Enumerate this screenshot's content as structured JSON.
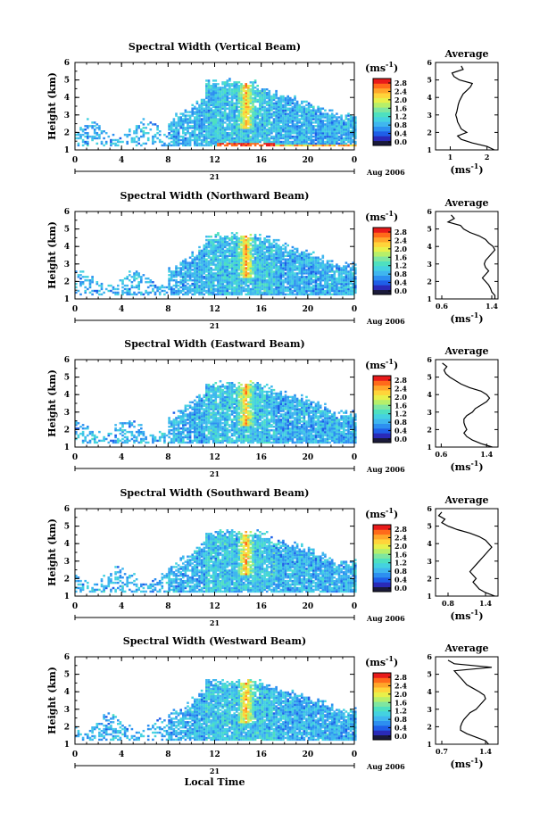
{
  "figure": {
    "xlabel": "Local Time",
    "date_label": "21",
    "month_label": "Aug 2006",
    "ylabel": "Height (km)",
    "unit_label": "(ms",
    "unit_sup": "-1",
    "unit_close": ")",
    "avg_title": "Average"
  },
  "colorbar": {
    "ticks": [
      "2.8",
      "2.4",
      "2.0",
      "1.6",
      "1.2",
      "0.8",
      "0.4",
      "0.0"
    ],
    "colors": [
      "#1a1a3a",
      "#2a2ab8",
      "#1f5fe8",
      "#2d8ff0",
      "#3fb6ef",
      "#44d2e0",
      "#4ee0c0",
      "#7fe6a0",
      "#b6ef6a",
      "#e8f04a",
      "#ffd43a",
      "#ffa62a",
      "#ff6a1a",
      "#e81a1a"
    ]
  },
  "chart_data": [
    {
      "type": "heatmap",
      "title": "Spectral Width (Vertical Beam)",
      "x_ticks": [
        "0",
        "4",
        "8",
        "12",
        "16",
        "20",
        "0"
      ],
      "y_ticks": [
        "1",
        "2",
        "3",
        "4",
        "5",
        "6"
      ],
      "xlim": [
        0,
        24
      ],
      "ylim": [
        1,
        6
      ],
      "colorbar_range": [
        0.0,
        2.8
      ],
      "avg_profile": {
        "title": "Average",
        "x_ticks": [
          "1",
          "2"
        ],
        "xlim": [
          0.6,
          2.3
        ],
        "y_ticks": [
          "1",
          "2",
          "3",
          "4",
          "5",
          "6"
        ],
        "height": [
          1.0,
          1.2,
          1.4,
          1.6,
          1.8,
          2.0,
          2.2,
          2.4,
          2.6,
          2.8,
          3.0,
          3.2,
          3.4,
          3.6,
          3.8,
          4.0,
          4.2,
          4.4,
          4.6,
          4.8,
          5.0,
          5.2,
          5.4,
          5.6,
          5.8
        ],
        "width": [
          2.2,
          2.0,
          1.6,
          1.3,
          1.2,
          1.45,
          1.3,
          1.25,
          1.2,
          1.18,
          1.15,
          1.18,
          1.2,
          1.22,
          1.25,
          1.3,
          1.35,
          1.45,
          1.55,
          1.6,
          1.25,
          1.1,
          1.05,
          1.35,
          1.3
        ]
      }
    },
    {
      "type": "heatmap",
      "title": "Spectral Width (Northward Beam)",
      "x_ticks": [
        "0",
        "4",
        "8",
        "12",
        "16",
        "20",
        "0"
      ],
      "y_ticks": [
        "1",
        "2",
        "3",
        "4",
        "5",
        "6"
      ],
      "xlim": [
        0,
        24
      ],
      "ylim": [
        1,
        6
      ],
      "colorbar_range": [
        0.0,
        2.8
      ],
      "avg_profile": {
        "title": "Average",
        "x_ticks": [
          "0.6",
          "1.4"
        ],
        "xlim": [
          0.5,
          1.5
        ],
        "y_ticks": [
          "1",
          "2",
          "3",
          "4",
          "5",
          "6"
        ],
        "height": [
          1.0,
          1.2,
          1.4,
          1.6,
          1.8,
          2.0,
          2.2,
          2.4,
          2.6,
          2.8,
          3.0,
          3.2,
          3.4,
          3.6,
          3.8,
          4.0,
          4.2,
          4.4,
          4.6,
          4.8,
          5.0,
          5.2,
          5.4,
          5.6,
          5.8
        ],
        "width": [
          1.45,
          1.45,
          1.4,
          1.38,
          1.35,
          1.3,
          1.25,
          1.3,
          1.35,
          1.3,
          1.28,
          1.3,
          1.35,
          1.4,
          1.45,
          1.42,
          1.35,
          1.3,
          1.2,
          1.05,
          0.95,
          0.9,
          0.7,
          0.8,
          0.75
        ]
      }
    },
    {
      "type": "heatmap",
      "title": "Spectral Width (Eastward Beam)",
      "x_ticks": [
        "0",
        "4",
        "8",
        "12",
        "16",
        "20",
        "0"
      ],
      "y_ticks": [
        "1",
        "2",
        "3",
        "4",
        "5",
        "6"
      ],
      "xlim": [
        0,
        24
      ],
      "ylim": [
        1,
        6
      ],
      "colorbar_range": [
        0.0,
        2.8
      ],
      "avg_profile": {
        "title": "Average",
        "x_ticks": [
          "0.6",
          "1.4"
        ],
        "xlim": [
          0.5,
          1.6
        ],
        "y_ticks": [
          "1",
          "2",
          "3",
          "4",
          "5",
          "6"
        ],
        "height": [
          1.0,
          1.2,
          1.4,
          1.6,
          1.8,
          2.0,
          2.2,
          2.4,
          2.6,
          2.8,
          3.0,
          3.2,
          3.4,
          3.6,
          3.8,
          4.0,
          4.2,
          4.4,
          4.6,
          4.8,
          5.0,
          5.2,
          5.4,
          5.6,
          5.8
        ],
        "width": [
          1.5,
          1.3,
          1.15,
          1.05,
          1.0,
          1.05,
          1.02,
          1.0,
          1.0,
          1.05,
          1.15,
          1.2,
          1.3,
          1.4,
          1.45,
          1.4,
          1.3,
          1.1,
          0.95,
          0.85,
          0.75,
          0.68,
          0.65,
          0.7,
          0.62
        ]
      }
    },
    {
      "type": "heatmap",
      "title": "Spectral Width (Southward Beam)",
      "x_ticks": [
        "0",
        "4",
        "8",
        "12",
        "16",
        "20",
        "0"
      ],
      "y_ticks": [
        "1",
        "2",
        "3",
        "4",
        "5",
        "6"
      ],
      "xlim": [
        0,
        24
      ],
      "ylim": [
        1,
        6
      ],
      "colorbar_range": [
        0.0,
        2.8
      ],
      "avg_profile": {
        "title": "Average",
        "x_ticks": [
          "0.8",
          "1.4"
        ],
        "xlim": [
          0.6,
          1.6
        ],
        "y_ticks": [
          "1",
          "2",
          "3",
          "4",
          "5",
          "6"
        ],
        "height": [
          1.0,
          1.2,
          1.4,
          1.6,
          1.8,
          2.0,
          2.2,
          2.4,
          2.6,
          2.8,
          3.0,
          3.2,
          3.4,
          3.6,
          3.8,
          4.0,
          4.2,
          4.4,
          4.6,
          4.8,
          5.0,
          5.2,
          5.4,
          5.6,
          5.8
        ],
        "width": [
          1.55,
          1.4,
          1.3,
          1.25,
          1.2,
          1.25,
          1.2,
          1.15,
          1.2,
          1.25,
          1.3,
          1.35,
          1.4,
          1.45,
          1.5,
          1.45,
          1.4,
          1.3,
          1.15,
          0.95,
          0.8,
          0.7,
          0.75,
          0.65,
          0.7
        ]
      }
    },
    {
      "type": "heatmap",
      "title": "Spectral Width (Westward Beam)",
      "x_ticks": [
        "0",
        "4",
        "8",
        "12",
        "16",
        "20",
        "0"
      ],
      "y_ticks": [
        "1",
        "2",
        "3",
        "4",
        "5",
        "6"
      ],
      "xlim": [
        0,
        24
      ],
      "ylim": [
        1,
        6
      ],
      "colorbar_range": [
        0.0,
        2.8
      ],
      "xlabel": "Local Time",
      "avg_profile": {
        "title": "Average",
        "x_ticks": [
          "0.7",
          "1.4"
        ],
        "xlim": [
          0.6,
          1.6
        ],
        "y_ticks": [
          "1",
          "2",
          "3",
          "4",
          "5",
          "6"
        ],
        "height": [
          1.0,
          1.2,
          1.4,
          1.6,
          1.8,
          2.0,
          2.2,
          2.4,
          2.6,
          2.8,
          3.0,
          3.2,
          3.4,
          3.6,
          3.8,
          4.0,
          4.2,
          4.4,
          4.6,
          4.8,
          5.0,
          5.2,
          5.4,
          5.6,
          5.8
        ],
        "width": [
          1.45,
          1.4,
          1.25,
          1.1,
          1.0,
          1.0,
          1.02,
          1.05,
          1.1,
          1.15,
          1.25,
          1.3,
          1.35,
          1.4,
          1.38,
          1.3,
          1.2,
          1.1,
          1.05,
          1.0,
          0.95,
          0.9,
          1.5,
          0.9,
          0.8
        ]
      }
    }
  ]
}
